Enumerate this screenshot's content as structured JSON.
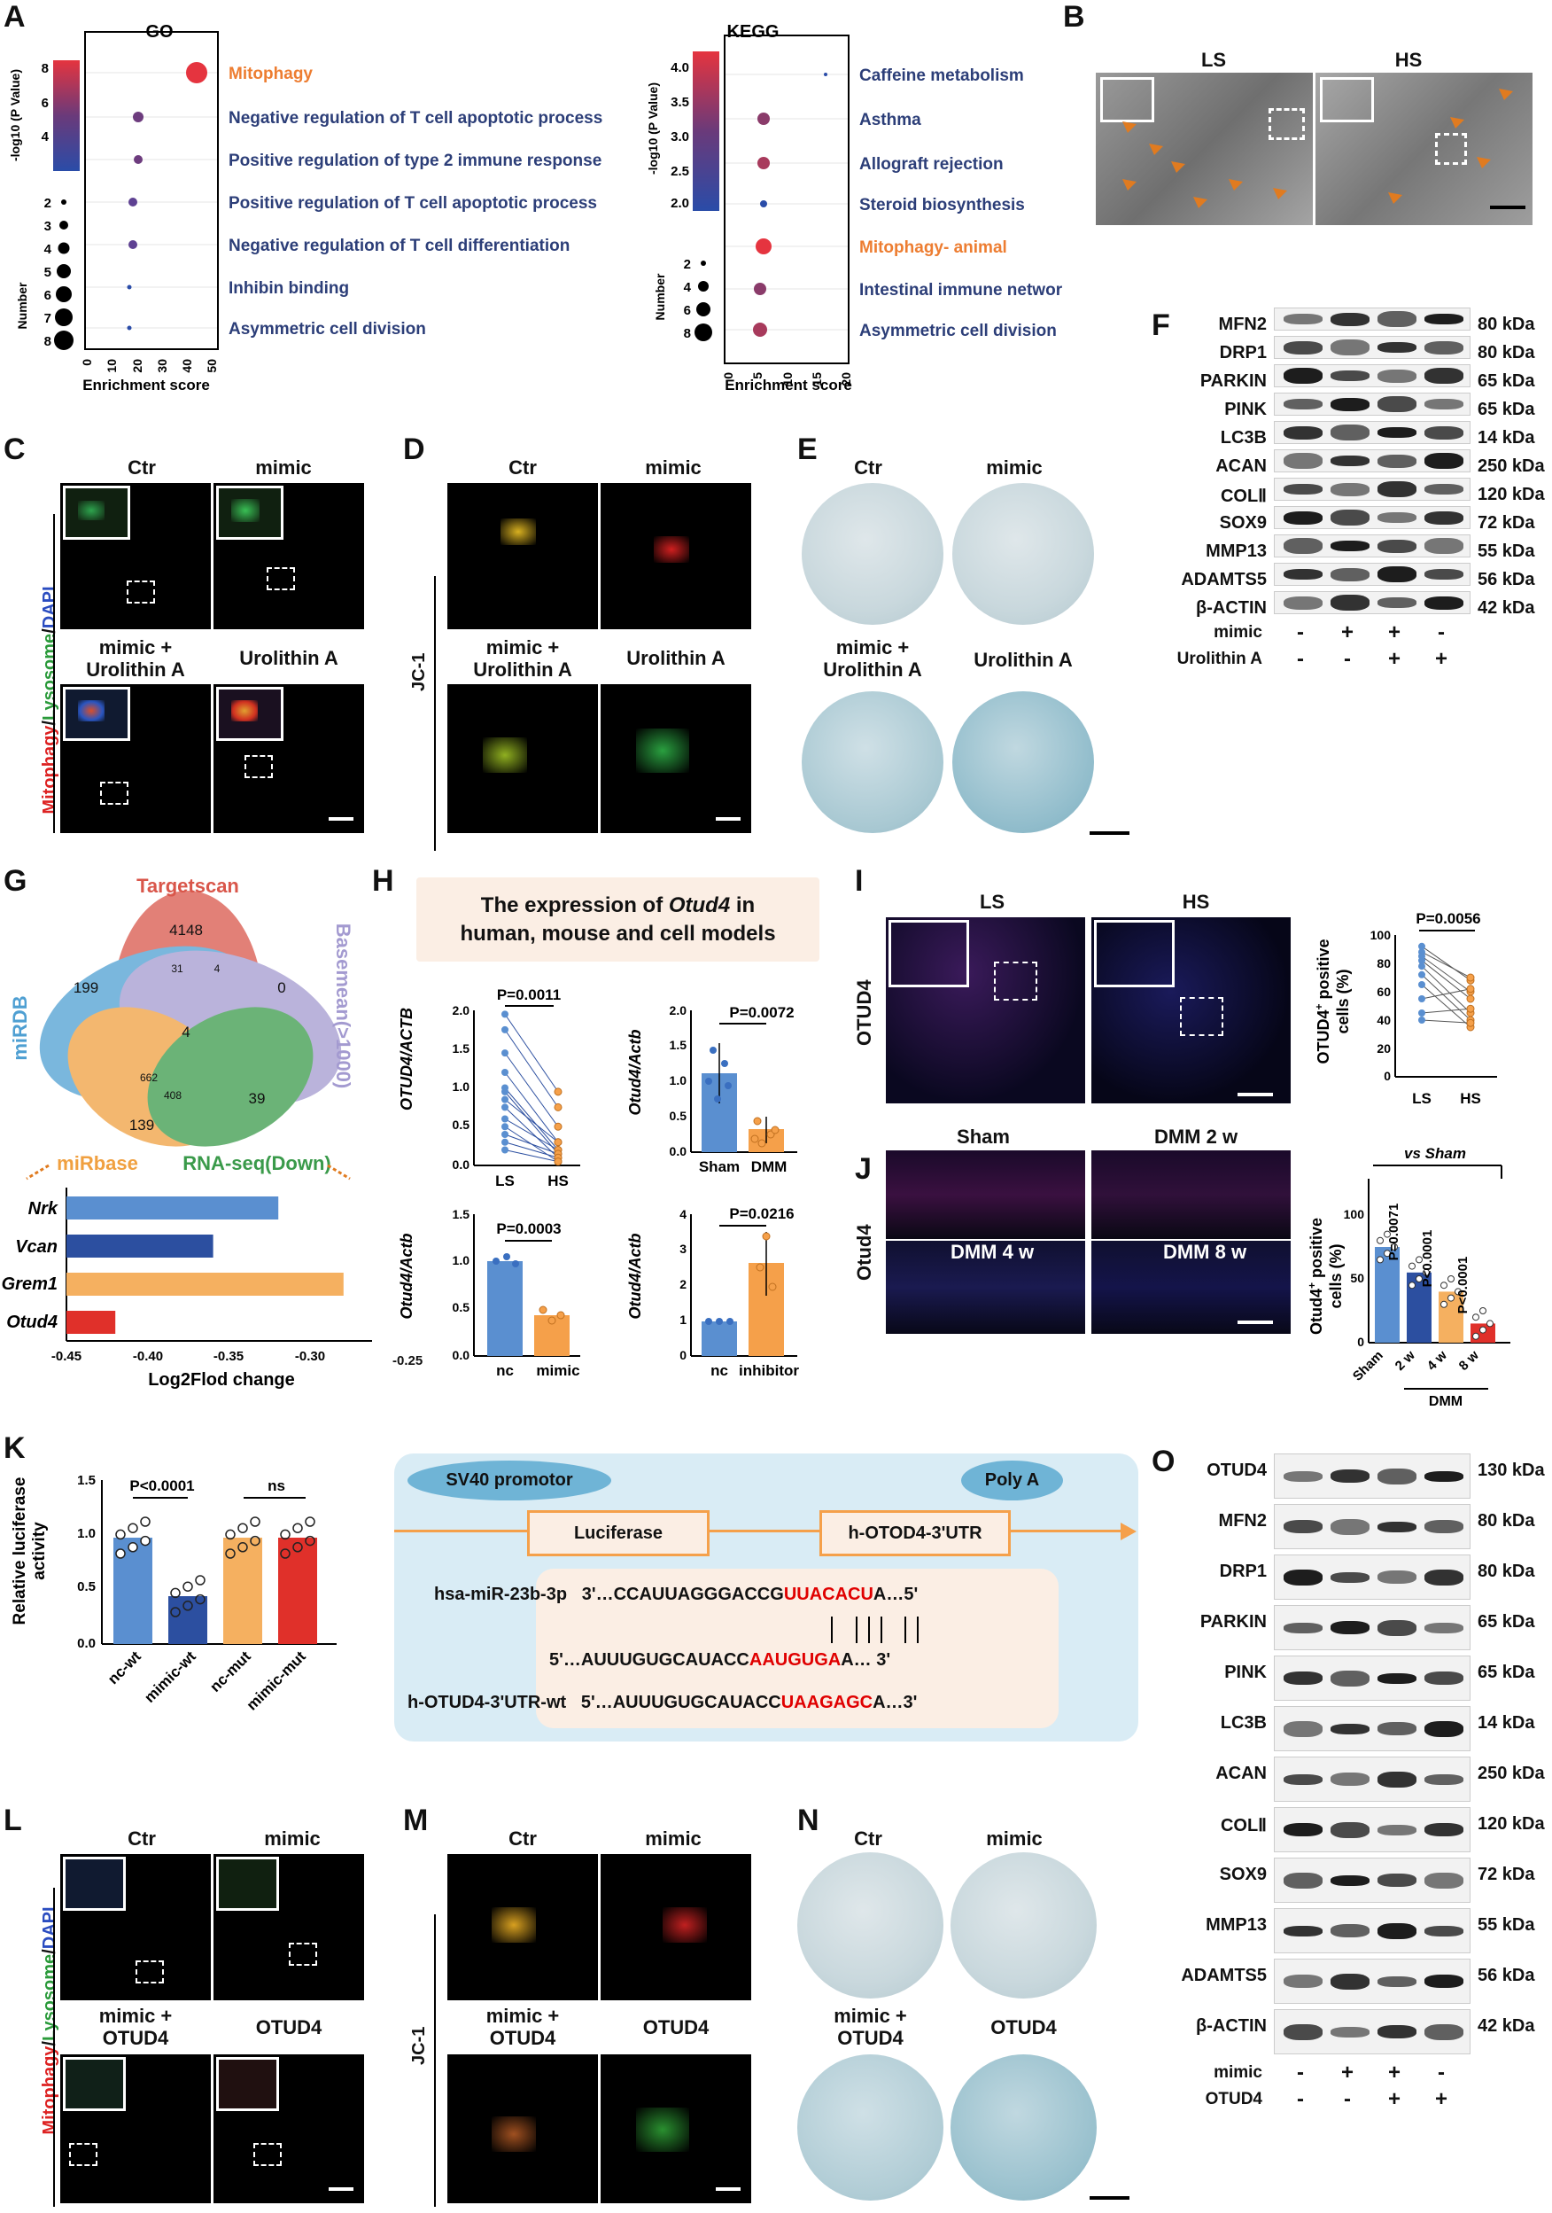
{
  "panels": {
    "A": "A",
    "B": "B",
    "C": "C",
    "D": "D",
    "E": "E",
    "F": "F",
    "G": "G",
    "H": "H",
    "I": "I",
    "J": "J",
    "K": "K",
    "L": "L",
    "M": "M",
    "N": "N",
    "O": "O"
  },
  "colors": {
    "orange": "#ed7d31",
    "red_text": "#e00000",
    "navy": "#2c3e78"
  },
  "A_go": {
    "title": "GO",
    "color_label": "-log10 (P Value)",
    "color_ticks": [
      "8",
      "6",
      "4"
    ],
    "size_label": "Number",
    "size_ticks": [
      "2",
      "3",
      "4",
      "5",
      "6",
      "7",
      "8"
    ],
    "xlabel": "Enrichment score",
    "xticks": [
      "0",
      "10",
      "20",
      "30",
      "40",
      "50"
    ],
    "terms": [
      "Mitophagy",
      "Negative regulation of T cell apoptotic process",
      "Positive regulation of type 2 immune response",
      "Positive regulation of T cell apoptotic process",
      "Negative regulation of T cell differentiation",
      "Inhibin binding",
      "Asymmetric cell division"
    ]
  },
  "A_kegg": {
    "title": "KEGG",
    "color_label": "-log10 (P Value)",
    "color_ticks": [
      "4.0",
      "3.5",
      "3.0",
      "2.5",
      "2.0"
    ],
    "size_label": "Number",
    "size_ticks": [
      "2",
      "4",
      "6",
      "8"
    ],
    "xlabel": "Enrichment score",
    "xticks": [
      "0",
      "5",
      "10",
      "15",
      "20"
    ],
    "terms": [
      "Caffeine metabolism",
      "Asthma",
      "Allograft rejection",
      "Steroid biosynthesis",
      "Mitophagy- animal",
      "Intestinal immune network for IgA production",
      "Asymmetric cell division"
    ]
  },
  "B": {
    "ls": "LS",
    "hs": "HS"
  },
  "C": {
    "ctr": "Ctr",
    "mimic": "mimic",
    "mimic_ua_1": "mimic +",
    "mimic_ua_2": "Urolithin A",
    "ua": "Urolithin A",
    "side_1": "Mitophagy",
    "side_2": "/",
    "side_3": "Lysosome",
    "side_4": "/",
    "side_5": "DAPI"
  },
  "D": {
    "ctr": "Ctr",
    "mimic": "mimic",
    "mimic_ua_1": "mimic +",
    "mimic_ua_2": "Urolithin A",
    "ua": "Urolithin A",
    "side": "JC-1"
  },
  "E": {
    "ctr": "Ctr",
    "mimic": "mimic",
    "mimic_ua_1": "mimic +",
    "mimic_ua_2": "Urolithin A",
    "ua": "Urolithin A"
  },
  "F": {
    "proteins": [
      "MFN2",
      "DRP1",
      "PARKIN",
      "PINK",
      "LC3B",
      "ACAN",
      "COLⅡ",
      "SOX9",
      "MMP13",
      "ADAMTS5",
      "β-ACTIN"
    ],
    "sizes": [
      "80 kDa",
      "80 kDa",
      "65 kDa",
      "65 kDa",
      "14 kDa",
      "250 kDa",
      "120 kDa",
      "72 kDa",
      "55 kDa",
      "56 kDa",
      "42 kDa"
    ],
    "cond1": "mimic",
    "cond1_signs": [
      "-",
      "+",
      "+",
      "-"
    ],
    "cond2": "Urolithin A",
    "cond2_signs": [
      "-",
      "-",
      "+",
      "+"
    ]
  },
  "G": {
    "venn_labels": {
      "targetscan": "Targetscan",
      "mirdb": "miRDB",
      "basemean": "Basemean(>1000)",
      "mirbase": "miRbase",
      "rnaseq": "RNA-seq(Down)"
    },
    "venn_numbers": [
      "4148",
      "199",
      "0",
      "139",
      "39",
      "4",
      "662",
      "408",
      "31",
      "4"
    ],
    "bar_genes": [
      "Nrk",
      "Vcan",
      "Grem1",
      "Otud4"
    ],
    "xlabel": "Log2Flod change",
    "xticks": [
      "-0.45",
      "-0.40",
      "-0.35",
      "-0.30",
      "-0.25"
    ]
  },
  "H": {
    "header_1": "The expression of ",
    "header_gene": "Otud4",
    "header_2": " in",
    "header_3": "human, mouse and cell models",
    "p1": "P=0.0011",
    "y1": "OTUD4/ACTB",
    "x1": [
      "LS",
      "HS"
    ],
    "yt1": [
      "2.0",
      "1.5",
      "1.0",
      "0.5",
      "0.0"
    ],
    "p2": "P=0.0072",
    "y2": "Otud4/Actb",
    "x2": [
      "Sham",
      "DMM"
    ],
    "yt2": [
      "2.0",
      "1.5",
      "1.0",
      "0.5",
      "0.0"
    ],
    "p3": "P=0.0003",
    "y3": "Otud4/Actb",
    "x3": [
      "nc",
      "mimic"
    ],
    "yt3": [
      "1.5",
      "1.0",
      "0.5",
      "0.0"
    ],
    "p4": "P=0.0216",
    "y4": "Otud4/Actb",
    "x4": [
      "nc",
      "inhibitor"
    ],
    "yt4": [
      "4",
      "3",
      "2",
      "1",
      "0"
    ]
  },
  "I": {
    "ls": "LS",
    "hs": "HS",
    "side": "OTUD4",
    "p": "P=0.0056",
    "ylabel_1": "OTUD4",
    "ylabel_sup": "+",
    "ylabel_2": " positive",
    "ylabel_3": "cells (%)",
    "yt": [
      "100",
      "80",
      "60",
      "40",
      "20",
      "0"
    ],
    "x": [
      "LS",
      "HS"
    ]
  },
  "J": {
    "sham": "Sham",
    "d2": "DMM 2 w",
    "d4": "DMM 4 w",
    "d8": "DMM 8 w",
    "side": "Otud4",
    "vs": "vs Sham",
    "ylabel_1": "Otud4",
    "ylabel_sup": "+",
    "ylabel_2": " positive",
    "ylabel_3": "cells (%)",
    "yt": [
      "100",
      "50",
      "0"
    ],
    "x": [
      "Sham",
      "2 w",
      "4 w",
      "8 w"
    ],
    "xgroup": "DMM",
    "pvals": [
      "P=0.0071",
      "P<0.0001",
      "P<0.0001"
    ]
  },
  "K": {
    "ylabel_1": "Relative luciferase",
    "ylabel_2": "activity",
    "yt": [
      "1.5",
      "1.0",
      "0.5",
      "0.0"
    ],
    "x": [
      "nc-wt",
      "mimic-wt",
      "nc-mut",
      "mimic-mut"
    ],
    "p": "P<0.0001",
    "ns": "ns",
    "sv40": "SV40 promotor",
    "polya": "Poly A",
    "luc": "Luciferase",
    "utr": "h-OTOD4-3'UTR",
    "mir_name": "hsa-miR-23b-3p",
    "mir_seq_1": "3'…CCAUUAGGGACCG",
    "mir_seq_red": "UUACACU",
    "mir_seq_2": "A…5'",
    "mut_seq_1": "5'…AUUUGUGCAUACC",
    "mut_seq_red": "AAUGUGA",
    "mut_seq_2": "A… 3'",
    "wt_name": "h-OTUD4-3'UTR-wt",
    "wt_seq_1": "5'…AUUUGUGCAUACC",
    "wt_seq_red": "UAAGAGC",
    "wt_seq_2": "A…3'"
  },
  "L": {
    "ctr": "Ctr",
    "mimic": "mimic",
    "mimic_o_1": "mimic +",
    "mimic_o_2": "OTUD4",
    "o": "OTUD4",
    "side_1": "Mitophagy",
    "side_2": "/",
    "side_3": "Lysosome",
    "side_4": "/",
    "side_5": "DAPI"
  },
  "M": {
    "ctr": "Ctr",
    "mimic": "mimic",
    "mimic_o_1": "mimic +",
    "mimic_o_2": "OTUD4",
    "o": "OTUD4",
    "side": "JC-1"
  },
  "N": {
    "ctr": "Ctr",
    "mimic": "mimic",
    "mimic_o_1": "mimic +",
    "mimic_o_2": "OTUD4",
    "o": "OTUD4"
  },
  "O": {
    "proteins": [
      "OTUD4",
      "MFN2",
      "DRP1",
      "PARKIN",
      "PINK",
      "LC3B",
      "ACAN",
      "COLⅡ",
      "SOX9",
      "MMP13",
      "ADAMTS5",
      "β-ACTIN"
    ],
    "sizes": [
      "130 kDa",
      "80 kDa",
      "80 kDa",
      "65 kDa",
      "65 kDa",
      "14 kDa",
      "250 kDa",
      "120 kDa",
      "72 kDa",
      "55 kDa",
      "56 kDa",
      "42 kDa"
    ],
    "cond1": "mimic",
    "cond1_signs": [
      "-",
      "+",
      "+",
      "-"
    ],
    "cond2": "OTUD4",
    "cond2_signs": [
      "-",
      "-",
      "+",
      "+"
    ]
  }
}
